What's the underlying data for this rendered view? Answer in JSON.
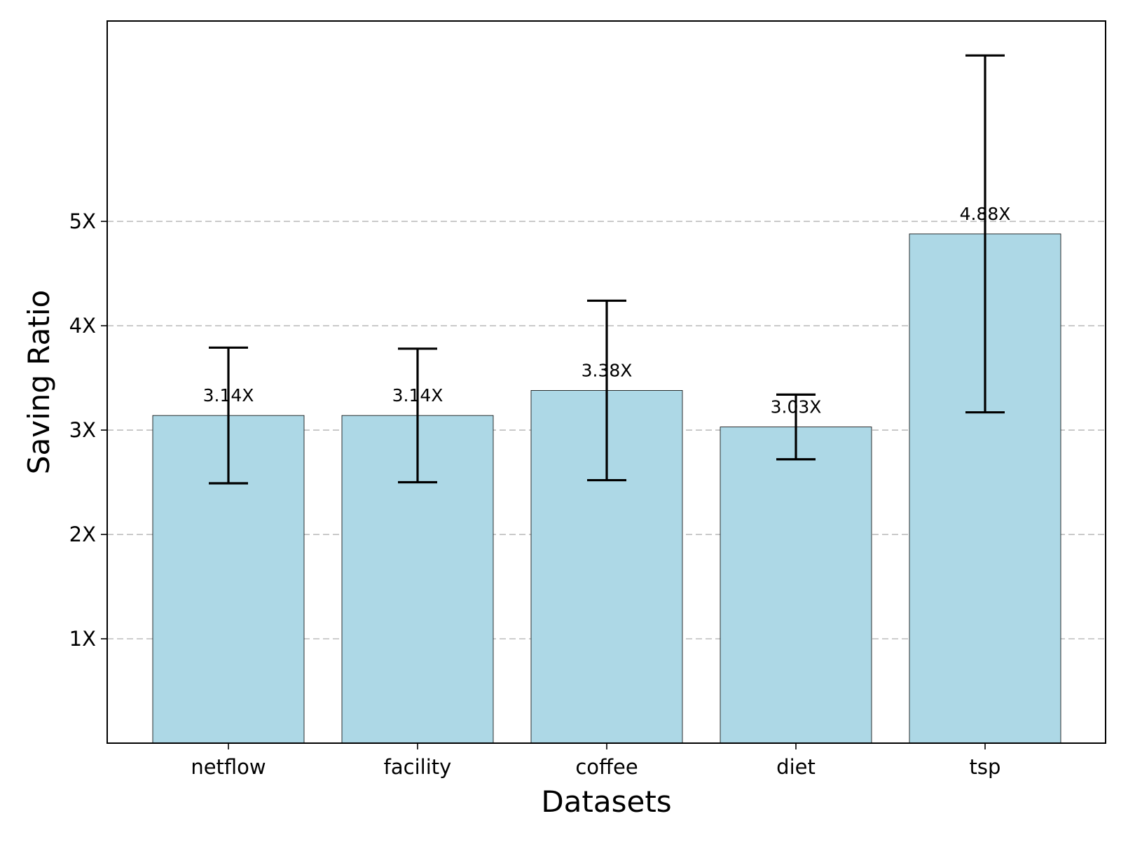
{
  "chart_data": {
    "type": "bar",
    "title": "",
    "xlabel": "Datasets",
    "ylabel": "Saving Ratio",
    "categories": [
      "netflow",
      "facility",
      "coffee",
      "diet",
      "tsp"
    ],
    "values": [
      3.14,
      3.14,
      3.38,
      3.03,
      4.88
    ],
    "error_low": [
      2.49,
      2.5,
      2.52,
      2.72,
      3.17
    ],
    "error_high": [
      3.79,
      3.78,
      4.24,
      3.34,
      6.59
    ],
    "bar_labels": [
      "3.14X",
      "3.14X",
      "3.38X",
      "3.03X",
      "4.88X"
    ],
    "ylim": [
      0,
      6.92
    ],
    "yticks": [
      1,
      2,
      3,
      4,
      5
    ],
    "ytick_labels": [
      "1X",
      "2X",
      "3X",
      "4X",
      "5X"
    ],
    "grid": "y-dashed",
    "colors": {
      "bar_fill": "#add8e6",
      "error_bar": "#000000",
      "grid": "#bdbdbd"
    }
  }
}
